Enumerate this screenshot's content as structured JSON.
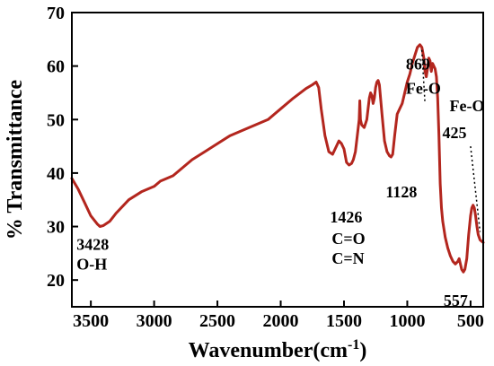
{
  "chart_data": {
    "type": "line",
    "title": "",
    "xlabel": "Wavenumber(cm",
    "xlabel_superscript": "-1",
    "xlabel_suffix": ")",
    "ylabel": "% Transmittance",
    "xlim": [
      3650,
      400
    ],
    "ylim": [
      15,
      70
    ],
    "x_reversed": true,
    "grid": false,
    "legend": "none",
    "x_ticks": [
      3500,
      3000,
      2500,
      2000,
      1500,
      1000,
      500
    ],
    "x_tick_labels": [
      "3500",
      "3000",
      "2500",
      "2000",
      "1500",
      "1000",
      "500"
    ],
    "y_ticks": [
      20,
      30,
      40,
      50,
      60,
      70
    ],
    "y_tick_labels": [
      "20",
      "30",
      "40",
      "50",
      "60",
      "70"
    ],
    "colors": {
      "line": "#b3261e",
      "line_highlight": "#e0301e",
      "axis": "#000000"
    },
    "series": [
      {
        "x": [
          3650,
          3600,
          3550,
          3500,
          3450,
          3428,
          3400,
          3350,
          3300,
          3200,
          3100,
          3000,
          2950,
          2900,
          2850,
          2800,
          2700,
          2600,
          2500,
          2400,
          2300,
          2200,
          2100,
          2000,
          1900,
          1800,
          1750,
          1720,
          1700,
          1680,
          1650,
          1620,
          1590,
          1560,
          1540,
          1520,
          1500,
          1480,
          1460,
          1440,
          1426,
          1410,
          1395,
          1380,
          1375,
          1370,
          1360,
          1340,
          1320,
          1310,
          1300,
          1290,
          1280,
          1270,
          1260,
          1250,
          1240,
          1230,
          1220,
          1200,
          1180,
          1160,
          1140,
          1128,
          1115,
          1100,
          1080,
          1060,
          1040,
          1020,
          1000,
          980,
          960,
          940,
          920,
          900,
          885,
          869,
          860,
          850,
          840,
          830,
          820,
          810,
          800,
          790,
          780,
          770,
          760,
          750,
          740,
          730,
          720,
          700,
          680,
          660,
          640,
          620,
          600,
          590,
          580,
          570,
          557,
          545,
          530,
          515,
          500,
          490,
          480,
          470,
          460,
          450,
          440,
          425,
          410,
          400
        ],
        "y": [
          39,
          37,
          34.5,
          32,
          30.5,
          30,
          30.2,
          31,
          32.5,
          35,
          36.5,
          37.5,
          38.5,
          39,
          39.5,
          40.5,
          42.5,
          44,
          45.5,
          47,
          48,
          49,
          50,
          52,
          54,
          55.8,
          56.5,
          57,
          56,
          52,
          47,
          44,
          43.5,
          45,
          46,
          45.5,
          44.5,
          42,
          41.5,
          41.8,
          42.5,
          44,
          47,
          50,
          53.5,
          50,
          49,
          48.5,
          50,
          52,
          54,
          55,
          54.5,
          53,
          54,
          56,
          57,
          57.3,
          56.5,
          51,
          46,
          44,
          43.2,
          43,
          43.5,
          47,
          51,
          52,
          53,
          55,
          57,
          58.5,
          60.5,
          62,
          63.5,
          64,
          63.5,
          61.5,
          59,
          58,
          59.5,
          61.5,
          61,
          59,
          60.5,
          60,
          59.5,
          58,
          54,
          47,
          38,
          33.5,
          31,
          28,
          26,
          24.5,
          23.5,
          23,
          23.5,
          24,
          23,
          22,
          21.5,
          22,
          24,
          28.5,
          32,
          33.5,
          34,
          33.5,
          32,
          30,
          28.5,
          27.5,
          27.2,
          27
        ]
      }
    ],
    "annotations": [
      {
        "text": "3428",
        "x": 3428,
        "y": 30
      },
      {
        "text": "O-H",
        "x": 3428,
        "y": 30
      },
      {
        "text": "1426",
        "x": 1426,
        "y": 41.8
      },
      {
        "text": "C=O",
        "x": 1426,
        "y": 41.8
      },
      {
        "text": "C=N",
        "x": 1426,
        "y": 41.8
      },
      {
        "text": "1128",
        "x": 1128,
        "y": 43
      },
      {
        "text": "869",
        "x": 869,
        "y": 61.5
      },
      {
        "text": "Fe-O",
        "x": 869,
        "y": 61.5
      },
      {
        "text": "Fe-O",
        "x": 425,
        "y": 27.2
      },
      {
        "text": "425",
        "x": 425,
        "y": 27.2
      },
      {
        "text": "557",
        "x": 557,
        "y": 21.5
      }
    ]
  }
}
